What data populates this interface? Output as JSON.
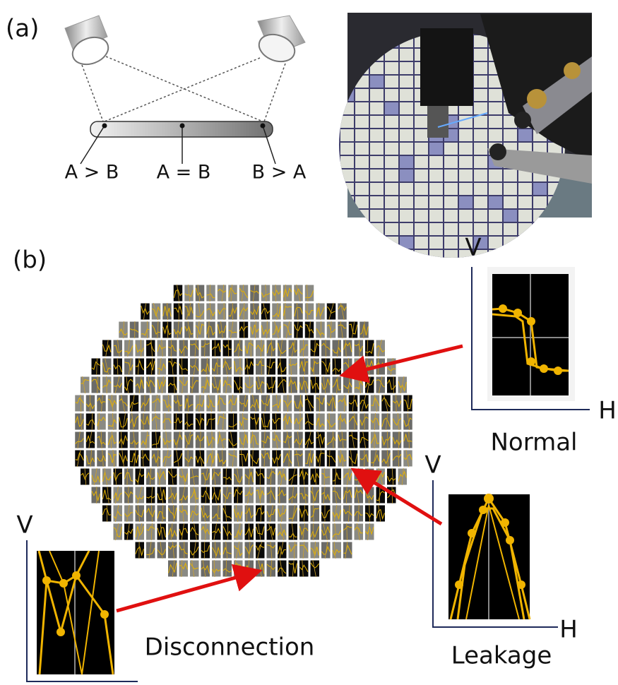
{
  "panel_a": {
    "label": "(a)",
    "positions": [
      "A > B",
      "A = B",
      "B > A"
    ]
  },
  "panel_b": {
    "label": "(b)",
    "insets": [
      {
        "y_axis": "V",
        "x_axis": "H",
        "caption": "Normal"
      },
      {
        "y_axis": "V",
        "x_axis": "H",
        "caption": "Leakage"
      },
      {
        "y_axis": "V",
        "caption": "Disconnection"
      }
    ]
  }
}
